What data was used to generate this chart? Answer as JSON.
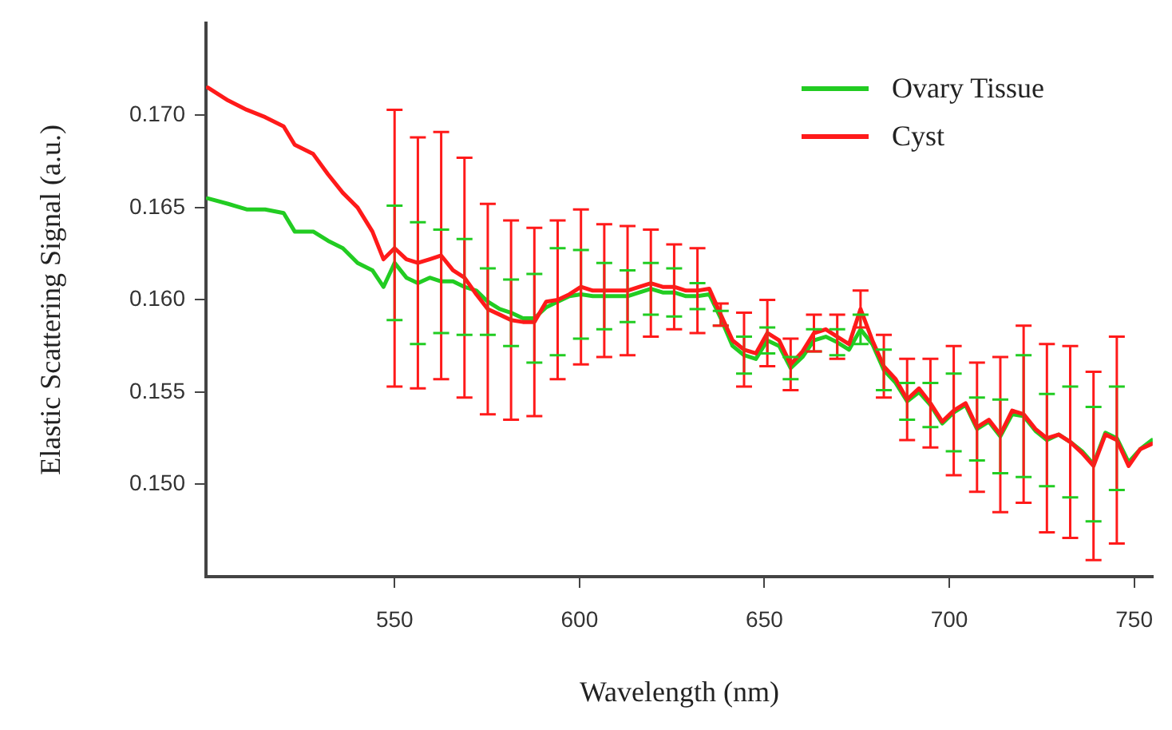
{
  "chart_data": {
    "type": "line",
    "xlabel": "Wavelength (nm)",
    "ylabel": "Elastic Scattering Signal (a.u.)",
    "x": [
      499.5,
      505,
      510,
      515,
      520,
      523,
      528,
      532,
      536,
      540,
      544,
      547,
      550,
      553.2,
      556.3,
      559.5,
      562.6,
      565.8,
      568.9,
      572.1,
      575.2,
      578.4,
      581.5,
      584.7,
      587.8,
      591,
      594.1,
      597.3,
      600.4,
      603.6,
      606.7,
      609.9,
      613,
      616.2,
      619.3,
      622.5,
      625.6,
      628.8,
      631.9,
      635.1,
      638.2,
      641.4,
      644.5,
      647.7,
      650.8,
      654,
      657.1,
      660.3,
      663.4,
      666.6,
      669.7,
      672.9,
      676,
      679.2,
      682.3,
      685.5,
      688.6,
      691.8,
      694.9,
      698.1,
      701.2,
      704.4,
      707.5,
      710.7,
      713.8,
      717,
      720.1,
      723.3,
      726.4,
      729.6,
      732.7,
      735.9,
      739,
      742.2,
      745.3,
      748.5,
      751.6,
      754.8
    ],
    "series": [
      {
        "name": "Ovary Tissue",
        "color": "#22cc22",
        "values": [
          0.1655,
          0.1652,
          0.1649,
          0.1649,
          0.1647,
          0.1637,
          0.1637,
          0.1632,
          0.1628,
          0.162,
          0.1616,
          0.1607,
          0.162,
          0.1612,
          0.1609,
          0.1612,
          0.161,
          0.161,
          0.1607,
          0.1605,
          0.1599,
          0.1595,
          0.1593,
          0.159,
          0.159,
          0.1596,
          0.1599,
          0.1602,
          0.1603,
          0.1602,
          0.1602,
          0.1602,
          0.1602,
          0.1604,
          0.1606,
          0.1604,
          0.1604,
          0.1602,
          0.1602,
          0.1603,
          0.159,
          0.1575,
          0.157,
          0.1568,
          0.1578,
          0.1575,
          0.1563,
          0.1569,
          0.1578,
          0.158,
          0.1577,
          0.1573,
          0.1584,
          0.1576,
          0.1562,
          0.1555,
          0.1545,
          0.155,
          0.1543,
          0.1533,
          0.1539,
          0.1543,
          0.153,
          0.1534,
          0.1526,
          0.1538,
          0.1537,
          0.1529,
          0.1524,
          0.1527,
          0.1523,
          0.1518,
          0.1511,
          0.1528,
          0.1525,
          0.1512,
          0.1519,
          0.1524
        ],
        "errors": [
          null,
          null,
          null,
          null,
          null,
          null,
          null,
          null,
          null,
          null,
          null,
          null,
          0.0031,
          null,
          0.0033,
          null,
          0.0028,
          null,
          0.0026,
          null,
          0.0018,
          null,
          0.0018,
          null,
          0.0024,
          null,
          0.0029,
          null,
          0.0024,
          null,
          0.0018,
          null,
          0.0014,
          null,
          0.0014,
          null,
          0.0013,
          null,
          0.0007,
          null,
          0.0004,
          null,
          0.001,
          null,
          0.0007,
          null,
          0.0006,
          null,
          0.0006,
          null,
          0.0007,
          null,
          0.0008,
          null,
          0.0011,
          null,
          0.001,
          null,
          0.0012,
          null,
          0.0021,
          null,
          0.0017,
          null,
          0.002,
          null,
          0.0033,
          null,
          0.0025,
          null,
          0.003,
          null,
          0.0031,
          null,
          0.0028,
          null,
          null,
          null
        ]
      },
      {
        "name": "Cyst",
        "color": "#ff1a1a",
        "values": [
          0.1715,
          0.1708,
          0.1703,
          0.1699,
          0.1694,
          0.1684,
          0.1679,
          0.1668,
          0.1658,
          0.165,
          0.1637,
          0.1622,
          0.1628,
          0.1622,
          0.162,
          0.1622,
          0.1624,
          0.1616,
          0.1612,
          0.1603,
          0.1595,
          0.1592,
          0.1589,
          0.1588,
          0.1588,
          0.1599,
          0.16,
          0.1603,
          0.1607,
          0.1605,
          0.1605,
          0.1605,
          0.1605,
          0.1607,
          0.1609,
          0.1607,
          0.1607,
          0.1605,
          0.1605,
          0.1606,
          0.1592,
          0.1578,
          0.1573,
          0.1571,
          0.1582,
          0.1578,
          0.1565,
          0.1572,
          0.1582,
          0.1584,
          0.158,
          0.1576,
          0.1595,
          0.1578,
          0.1564,
          0.1557,
          0.1546,
          0.1552,
          0.1544,
          0.1534,
          0.154,
          0.1544,
          0.1531,
          0.1535,
          0.1527,
          0.154,
          0.1538,
          0.153,
          0.1525,
          0.1527,
          0.1523,
          0.1517,
          0.151,
          0.1527,
          0.1524,
          0.151,
          0.1519,
          0.1522
        ],
        "errors": [
          null,
          null,
          null,
          null,
          null,
          null,
          null,
          null,
          null,
          null,
          null,
          null,
          0.0075,
          null,
          0.0068,
          null,
          0.0067,
          null,
          0.0065,
          null,
          0.0057,
          null,
          0.0054,
          null,
          0.0051,
          null,
          0.0043,
          null,
          0.0042,
          null,
          0.0036,
          null,
          0.0035,
          null,
          0.0029,
          null,
          0.0023,
          null,
          0.0023,
          null,
          0.0006,
          null,
          0.002,
          null,
          0.0018,
          null,
          0.0014,
          null,
          0.001,
          null,
          0.0012,
          null,
          0.001,
          null,
          0.0017,
          null,
          0.0022,
          null,
          0.0024,
          null,
          0.0035,
          null,
          0.0035,
          null,
          0.0042,
          null,
          0.0048,
          null,
          0.0051,
          null,
          0.0052,
          null,
          0.0051,
          null,
          0.0056,
          null,
          null,
          null
        ]
      }
    ],
    "xlim": [
      499,
      755
    ],
    "xticks": [
      550,
      600,
      650,
      700,
      750
    ],
    "ylim": [
      0.145,
      0.175
    ],
    "yticks": [
      {
        "value": 0.15,
        "label": "0.150"
      },
      {
        "value": 0.155,
        "label": "0.155"
      },
      {
        "value": 0.16,
        "label": "0.160"
      },
      {
        "value": 0.165,
        "label": "0.165"
      },
      {
        "value": 0.17,
        "label": "0.170"
      }
    ],
    "legend": "top right",
    "marker": "none",
    "line_style": "solid"
  }
}
